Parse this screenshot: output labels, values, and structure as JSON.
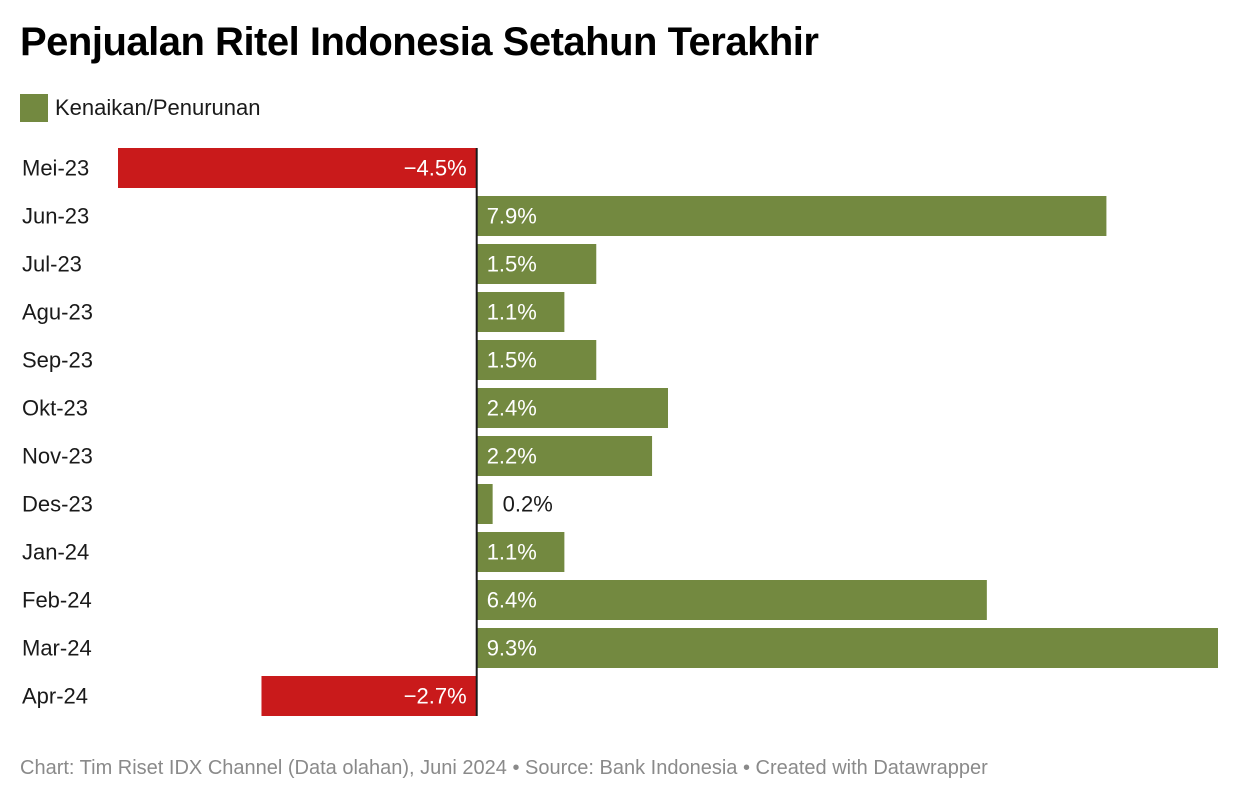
{
  "title": "Penjualan Ritel Indonesia Setahun Terakhir",
  "legend": {
    "label": "Kenaikan/Penurunan",
    "color": "#738940"
  },
  "colors": {
    "positive": "#738940",
    "negative": "#c91a1b",
    "axis": "#1a1a1a"
  },
  "footer": "Chart: Tim Riset IDX Channel (Data olahan), Juni 2024 • Source: Bank Indonesia • Created with Datawrapper",
  "chart_data": {
    "type": "bar",
    "orientation": "horizontal",
    "categories": [
      "Mei-23",
      "Jun-23",
      "Jul-23",
      "Agu-23",
      "Sep-23",
      "Okt-23",
      "Nov-23",
      "Des-23",
      "Jan-24",
      "Feb-24",
      "Mar-24",
      "Apr-24"
    ],
    "values": [
      -4.5,
      7.9,
      1.5,
      1.1,
      1.5,
      2.4,
      2.2,
      0.2,
      1.1,
      6.4,
      9.3,
      -2.7
    ],
    "labels": [
      "−4.5%",
      "7.9%",
      "1.5%",
      "1.1%",
      "1.5%",
      "2.4%",
      "2.2%",
      "0.2%",
      "1.1%",
      "6.4%",
      "9.3%",
      "−2.7%"
    ],
    "series": [
      {
        "name": "Kenaikan/Penurunan"
      }
    ],
    "xlim": [
      -4.5,
      9.3
    ],
    "grid": false,
    "legend_position": "top-left"
  }
}
